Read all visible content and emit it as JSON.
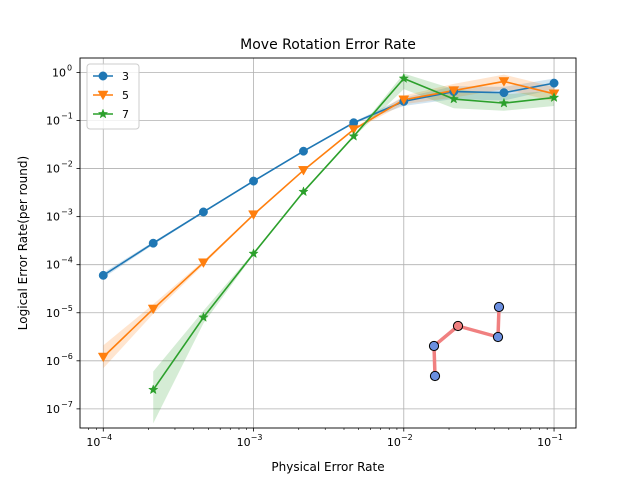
{
  "chart_data": {
    "type": "line",
    "title": "Move Rotation Error Rate",
    "xlabel": "Physical Error Rate",
    "ylabel": "Logical Error Rate(per round)",
    "xscale": "log",
    "yscale": "log",
    "xlim": [
      7e-05,
      0.14
    ],
    "ylim": [
      4e-08,
      2.0
    ],
    "grid": true,
    "legend_position": "top-left",
    "x_ticks": [
      {
        "value": 0.0001,
        "mant": "10",
        "exp": "−4"
      },
      {
        "value": 0.001,
        "mant": "10",
        "exp": "−3"
      },
      {
        "value": 0.01,
        "mant": "10",
        "exp": "−2"
      },
      {
        "value": 0.1,
        "mant": "10",
        "exp": "−1"
      }
    ],
    "y_ticks": [
      {
        "value": 1e-07,
        "mant": "10",
        "exp": "−7"
      },
      {
        "value": 1e-06,
        "mant": "10",
        "exp": "−6"
      },
      {
        "value": 1e-05,
        "mant": "10",
        "exp": "−5"
      },
      {
        "value": 0.0001,
        "mant": "10",
        "exp": "−4"
      },
      {
        "value": 0.001,
        "mant": "10",
        "exp": "−3"
      },
      {
        "value": 0.01,
        "mant": "10",
        "exp": "−2"
      },
      {
        "value": 0.1,
        "mant": "10",
        "exp": "−1"
      },
      {
        "value": 1,
        "mant": "10",
        "exp": "0"
      }
    ],
    "series": [
      {
        "name": "3",
        "color": "#1f77b4",
        "marker": "circle",
        "x": [
          0.0001,
          0.000215,
          0.000464,
          0.001,
          0.00215,
          0.00464,
          0.01,
          0.0215,
          0.0464,
          0.1
        ],
        "y": [
          6e-05,
          0.00028,
          0.00125,
          0.0055,
          0.023,
          0.09,
          0.25,
          0.4,
          0.38,
          0.6
        ],
        "lower": [
          5.3e-05,
          0.00026,
          0.00119,
          0.0053,
          0.0222,
          0.086,
          0.2,
          0.28,
          0.26,
          0.45
        ],
        "upper": [
          6.8e-05,
          0.0003,
          0.00131,
          0.0057,
          0.0238,
          0.094,
          0.3,
          0.52,
          0.5,
          0.75
        ]
      },
      {
        "name": "5",
        "color": "#ff7f0e",
        "marker": "triangle-down",
        "x": [
          0.0001,
          0.000215,
          0.000464,
          0.001,
          0.00215,
          0.00464,
          0.01,
          0.0215,
          0.0464,
          0.1
        ],
        "y": [
          1.2e-06,
          1.2e-05,
          0.00011,
          0.0011,
          0.0092,
          0.065,
          0.27,
          0.42,
          0.65,
          0.36
        ],
        "lower": [
          7e-07,
          9.5e-06,
          0.0001,
          0.00105,
          0.009,
          0.062,
          0.22,
          0.3,
          0.45,
          0.25
        ],
        "upper": [
          2.1e-06,
          1.5e-05,
          0.00012,
          0.00115,
          0.0094,
          0.068,
          0.33,
          0.58,
          0.9,
          0.5
        ]
      },
      {
        "name": "7",
        "color": "#2ca02c",
        "marker": "star",
        "x": [
          0.000215,
          0.000464,
          0.001,
          0.00215,
          0.00464,
          0.01,
          0.0215,
          0.0464,
          0.1
        ],
        "y": [
          2.5e-07,
          8e-06,
          0.00017,
          0.0033,
          0.047,
          0.75,
          0.28,
          0.23,
          0.3
        ],
        "lower": [
          5e-08,
          6e-06,
          0.00016,
          0.0032,
          0.045,
          0.45,
          0.18,
          0.16,
          0.2
        ],
        "upper": [
          6e-07,
          1.1e-05,
          0.00018,
          0.0034,
          0.049,
          0.95,
          0.45,
          0.35,
          0.42
        ]
      }
    ]
  },
  "logo": {
    "line_color": "#f08080",
    "node_fill": "#6b8fe0",
    "node_highlight_fill": "#f08080",
    "node_stroke": "#000000"
  }
}
